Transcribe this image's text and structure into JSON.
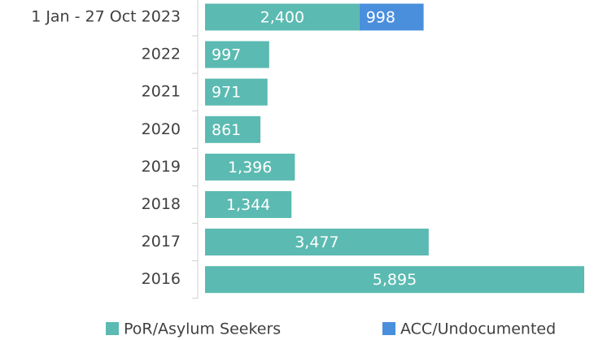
{
  "chart_data": {
    "type": "bar",
    "orientation": "horizontal",
    "stacked": true,
    "categories": [
      "1 Jan - 27 Oct 2023",
      "2022",
      "2021",
      "2020",
      "2019",
      "2018",
      "2017",
      "2016"
    ],
    "series": [
      {
        "name": "PoR/Asylum Seekers",
        "color": "#5bbab1",
        "values": [
          2400,
          997,
          971,
          861,
          1396,
          1344,
          3477,
          5895
        ],
        "value_labels": [
          "2,400",
          "997",
          "971",
          "861",
          "1,396",
          "1,344",
          "3,477",
          "5,895"
        ]
      },
      {
        "name": "ACC/Undocumented",
        "color": "#4a8fdc",
        "values": [
          998,
          null,
          null,
          null,
          null,
          null,
          null,
          null
        ],
        "value_labels": [
          "998",
          null,
          null,
          null,
          null,
          null,
          null,
          null
        ]
      }
    ]
  }
}
